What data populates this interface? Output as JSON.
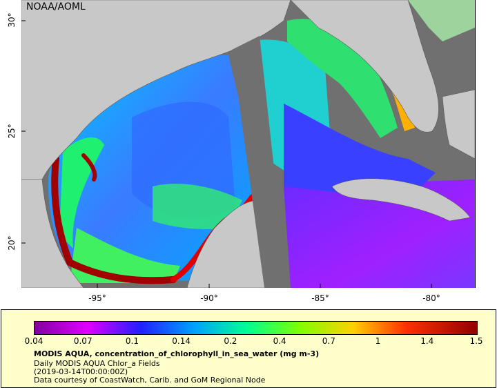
{
  "map": {
    "credit": "NOAA/AOML",
    "lat_ticks": [
      "30°",
      "25°",
      "20°"
    ],
    "lon_ticks": [
      "-95°",
      "-90°",
      "-85°",
      "-80°"
    ],
    "extent": {
      "lon": [
        -98,
        -78
      ],
      "lat": [
        18,
        31
      ]
    },
    "colors": {
      "land": "#c8c8c8",
      "no_data": "#707070",
      "border": "#5a5a5a"
    }
  },
  "legend": {
    "colorbar_ticks": [
      "0.04",
      "0.07",
      "0.1",
      "0.14",
      "0.2",
      "0.4",
      "0.7",
      "1",
      "1.4",
      "1.5"
    ],
    "title": "MODIS AQUA, concentration_of_chlorophyll_in_sea_water (mg m-3)",
    "line1": "Daily MODIS AQUA Chlor_a Fields",
    "line2": "(2019-03-14T00:00:00Z)",
    "line3": "Data courtesy of CoastWatch, Carib. and GoM Regional Node"
  }
}
